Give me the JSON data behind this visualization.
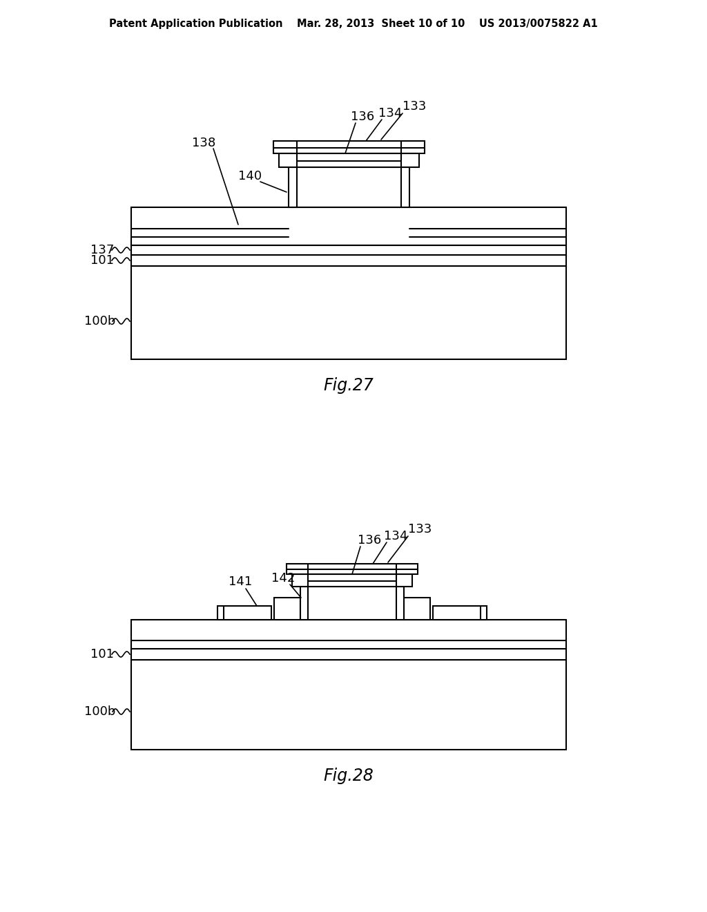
{
  "bg_color": "#ffffff",
  "line_color": "#000000",
  "header_text": "Patent Application Publication    Mar. 28, 2013  Sheet 10 of 10    US 2013/0075822 A1",
  "fig27_title": "Fig.27",
  "fig28_title": "Fig.28"
}
